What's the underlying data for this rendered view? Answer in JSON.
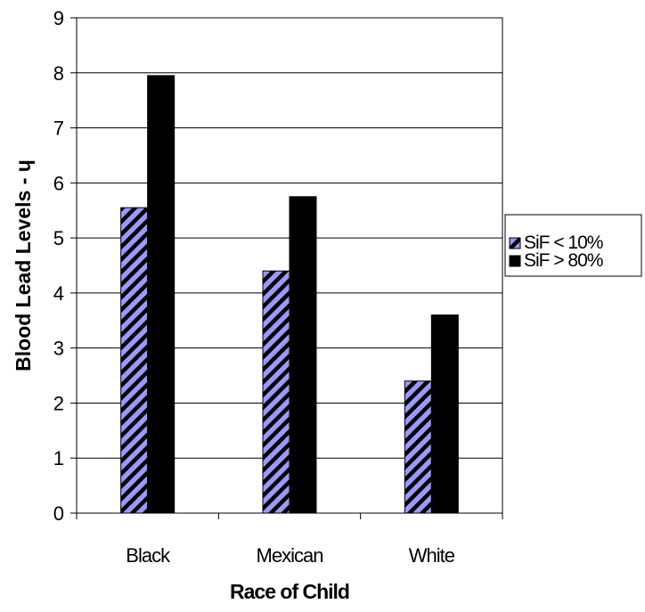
{
  "chart_data": {
    "type": "bar",
    "categories": [
      "Black",
      "Mexican",
      "White"
    ],
    "series": [
      {
        "name": "SiF < 10%",
        "values": [
          5.55,
          4.4,
          2.4
        ],
        "color": "#9999ff",
        "pattern": "diagonal-stripes"
      },
      {
        "name": "SiF > 80%",
        "values": [
          7.95,
          5.75,
          3.6
        ],
        "color": "#000000",
        "pattern": "solid"
      }
    ],
    "title": "",
    "xlabel": "Race of Child",
    "ylabel": "Blood Lead Levels - ɥ",
    "ylim": [
      0,
      9
    ],
    "yticks": [
      "0",
      "1",
      "2",
      "3",
      "4",
      "5",
      "6",
      "7",
      "8",
      "9"
    ],
    "grid": true,
    "legend_position": "right"
  }
}
